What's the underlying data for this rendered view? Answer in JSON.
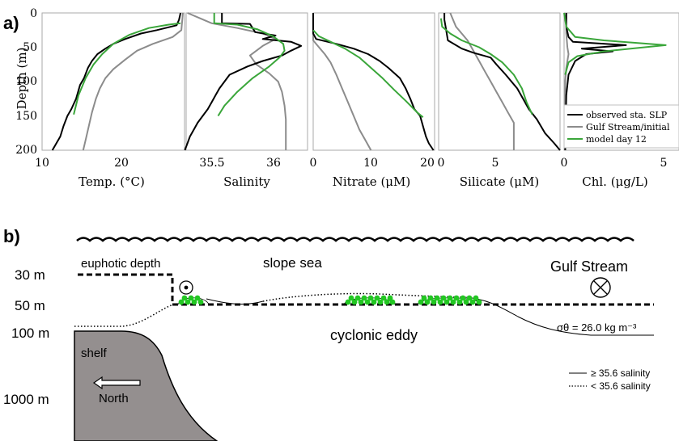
{
  "panel_a_label": "a)",
  "panel_b_label": "b)",
  "colors": {
    "observed": "#000000",
    "gulf_stream": "#8c8c8c",
    "model": "#3aa63a",
    "shelf": "#948f8f",
    "patch": "#22c722"
  },
  "chart_data": {
    "type": "line",
    "ylabel": "Depth (m)",
    "ylim": [
      200,
      0
    ],
    "yticks": [
      "0",
      "50",
      "100",
      "150",
      "200"
    ],
    "legend": [
      "observed sta. SLP",
      "Gulf Stream/initial",
      "model day 12"
    ],
    "legend_position": "bottom-right of last panel",
    "panels": [
      {
        "xlabel": "Temp. (°C)",
        "xlim": [
          10,
          28
        ],
        "xticks": [
          "10",
          "20"
        ],
        "series": [
          {
            "name": "observed sta. SLP",
            "points": [
              [
                27.5,
                0
              ],
              [
                27.3,
                10
              ],
              [
                27.0,
                18
              ],
              [
                24.5,
                25
              ],
              [
                22.5,
                30
              ],
              [
                20.5,
                38
              ],
              [
                19.0,
                45
              ],
              [
                18.0,
                52
              ],
              [
                17.0,
                60
              ],
              [
                16.3,
                70
              ],
              [
                15.8,
                80
              ],
              [
                15.3,
                95
              ],
              [
                14.8,
                105
              ],
              [
                14.3,
                125
              ],
              [
                13.7,
                140
              ],
              [
                13.2,
                150
              ],
              [
                12.7,
                165
              ],
              [
                12.3,
                180
              ],
              [
                11.8,
                190
              ],
              [
                11.3,
                200
              ]
            ]
          },
          {
            "name": "Gulf Stream/initial",
            "points": [
              [
                27.8,
                0
              ],
              [
                27.6,
                25
              ],
              [
                26.5,
                35
              ],
              [
                24.0,
                45
              ],
              [
                22.0,
                55
              ],
              [
                20.5,
                68
              ],
              [
                19.0,
                82
              ],
              [
                18.0,
                95
              ],
              [
                17.3,
                110
              ],
              [
                16.8,
                125
              ],
              [
                16.3,
                145
              ],
              [
                15.9,
                165
              ],
              [
                15.5,
                185
              ],
              [
                15.2,
                200
              ]
            ]
          },
          {
            "name": "model day 12",
            "points": [
              [
                27.5,
                15
              ],
              [
                26.0,
                17
              ],
              [
                23.5,
                22
              ],
              [
                21.0,
                32
              ],
              [
                19.0,
                45
              ],
              [
                17.6,
                60
              ],
              [
                16.5,
                75
              ],
              [
                15.5,
                95
              ],
              [
                14.6,
                120
              ],
              [
                14.0,
                148
              ]
            ]
          }
        ]
      },
      {
        "xlabel": "Salinity",
        "xlim": [
          35.4,
          36.35
        ],
        "xticks": [
          "35.5",
          "36"
        ],
        "series": [
          {
            "name": "observed sta. SLP",
            "points": [
              [
                35.68,
                0
              ],
              [
                35.68,
                15
              ],
              [
                35.9,
                16
              ],
              [
                35.92,
                22
              ],
              [
                35.94,
                28
              ],
              [
                36.1,
                33
              ],
              [
                36.0,
                38
              ],
              [
                36.22,
                42
              ],
              [
                36.3,
                48
              ],
              [
                36.22,
                55
              ],
              [
                36.15,
                62
              ],
              [
                36.0,
                70
              ],
              [
                35.88,
                78
              ],
              [
                35.74,
                90
              ],
              [
                35.7,
                100
              ],
              [
                35.66,
                110
              ],
              [
                35.63,
                120
              ],
              [
                35.6,
                130
              ],
              [
                35.57,
                140
              ],
              [
                35.53,
                150
              ],
              [
                35.49,
                160
              ],
              [
                35.46,
                170
              ],
              [
                35.43,
                180
              ],
              [
                35.41,
                190
              ],
              [
                35.39,
                200
              ]
            ]
          },
          {
            "name": "Gulf Stream/initial",
            "points": [
              [
                35.41,
                0
              ],
              [
                35.6,
                15
              ],
              [
                35.8,
                22
              ],
              [
                36.0,
                30
              ],
              [
                36.1,
                38
              ],
              [
                36.0,
                48
              ],
              [
                35.9,
                62
              ],
              [
                35.95,
                75
              ],
              [
                36.05,
                88
              ],
              [
                36.12,
                100
              ],
              [
                36.15,
                115
              ],
              [
                36.17,
                135
              ],
              [
                36.18,
                155
              ],
              [
                36.18,
                200
              ]
            ]
          },
          {
            "name": "model day 12",
            "points": [
              [
                35.62,
                0
              ],
              [
                35.62,
                15
              ],
              [
                35.8,
                17
              ],
              [
                35.96,
                24
              ],
              [
                36.08,
                34
              ],
              [
                36.16,
                45
              ],
              [
                36.17,
                55
              ],
              [
                36.13,
                65
              ],
              [
                36.05,
                78
              ],
              [
                35.92,
                95
              ],
              [
                35.8,
                115
              ],
              [
                35.7,
                135
              ],
              [
                35.65,
                150
              ]
            ]
          }
        ]
      },
      {
        "xlabel": "Nitrate (μM)",
        "xlim": [
          0,
          21
        ],
        "xticks": [
          "0",
          "10",
          "20"
        ],
        "series": [
          {
            "name": "observed sta. SLP",
            "points": [
              [
                0,
                0
              ],
              [
                0,
                30
              ],
              [
                0.5,
                38
              ],
              [
                4,
                45
              ],
              [
                7,
                52
              ],
              [
                9.5,
                60
              ],
              [
                11.5,
                70
              ],
              [
                13,
                80
              ],
              [
                15,
                95
              ],
              [
                16,
                110
              ],
              [
                16.8,
                125
              ],
              [
                17.5,
                140
              ],
              [
                18.5,
                150
              ],
              [
                19,
                165
              ],
              [
                19.5,
                180
              ],
              [
                20,
                190
              ],
              [
                20.8,
                200
              ]
            ]
          },
          {
            "name": "Gulf Stream/initial",
            "points": [
              [
                0,
                0
              ],
              [
                0,
                40
              ],
              [
                1,
                50
              ],
              [
                2,
                60
              ],
              [
                3,
                72
              ],
              [
                4,
                90
              ],
              [
                5,
                110
              ],
              [
                6,
                130
              ],
              [
                7,
                150
              ],
              [
                8,
                170
              ],
              [
                9,
                185
              ],
              [
                10,
                200
              ]
            ]
          },
          {
            "name": "model day 12",
            "points": [
              [
                0,
                25
              ],
              [
                1,
                34
              ],
              [
                3,
                42
              ],
              [
                5.5,
                52
              ],
              [
                8,
                65
              ],
              [
                10,
                80
              ],
              [
                12,
                95
              ],
              [
                14,
                112
              ],
              [
                16,
                128
              ],
              [
                18,
                145
              ],
              [
                19,
                152
              ]
            ]
          }
        ]
      },
      {
        "xlabel": "Silicate (μM)",
        "xlim": [
          0,
          10.5
        ],
        "xticks": [
          "0",
          "5"
        ],
        "series": [
          {
            "name": "observed sta. SLP",
            "points": [
              [
                0.5,
                0
              ],
              [
                0.5,
                10
              ],
              [
                0.6,
                20
              ],
              [
                0.8,
                40
              ],
              [
                2,
                52
              ],
              [
                3,
                58
              ],
              [
                4.5,
                65
              ],
              [
                5,
                75
              ],
              [
                5.8,
                90
              ],
              [
                6.8,
                110
              ],
              [
                7.3,
                125
              ],
              [
                7.8,
                140
              ],
              [
                8.5,
                155
              ],
              [
                9.2,
                175
              ],
              [
                10,
                190
              ],
              [
                10.5,
                200
              ]
            ]
          },
          {
            "name": "Gulf Stream/initial",
            "points": [
              [
                1,
                0
              ],
              [
                1.5,
                20
              ],
              [
                2.5,
                40
              ],
              [
                3,
                55
              ],
              [
                3.5,
                70
              ],
              [
                4,
                85
              ],
              [
                4.5,
                100
              ],
              [
                5,
                115
              ],
              [
                5.5,
                130
              ],
              [
                6,
                145
              ],
              [
                6.5,
                160
              ],
              [
                6.5,
                200
              ]
            ]
          },
          {
            "name": "model day 12",
            "points": [
              [
                0.2,
                8
              ],
              [
                0.3,
                20
              ],
              [
                1,
                30
              ],
              [
                2,
                40
              ],
              [
                3.5,
                50
              ],
              [
                4.5,
                60
              ],
              [
                5.5,
                72
              ],
              [
                6.5,
                90
              ],
              [
                7.2,
                110
              ],
              [
                7.6,
                130
              ],
              [
                8.1,
                148
              ]
            ]
          }
        ]
      },
      {
        "xlabel": "Chl. (μg/L)",
        "xlim": [
          0,
          5.2
        ],
        "xticks": [
          "0",
          "5"
        ],
        "series": [
          {
            "name": "observed sta. SLP",
            "points": [
              [
                0.1,
                0
              ],
              [
                0.1,
                20
              ],
              [
                0.2,
                35
              ],
              [
                0.4,
                42
              ],
              [
                2.8,
                47
              ],
              [
                0.8,
                52
              ],
              [
                2.2,
                56
              ],
              [
                1.0,
                60
              ],
              [
                0.5,
                70
              ],
              [
                0.2,
                90
              ],
              [
                0.1,
                120
              ],
              [
                0.05,
                200
              ]
            ]
          },
          {
            "name": "Gulf Stream/initial",
            "points": [
              [
                0.1,
                0
              ],
              [
                0.1,
                30
              ],
              [
                0.15,
                50
              ],
              [
                0.2,
                60
              ],
              [
                0.1,
                80
              ],
              [
                0.05,
                100
              ],
              [
                0.05,
                200
              ]
            ]
          },
          {
            "name": "model day 12",
            "points": [
              [
                0,
                0
              ],
              [
                0.1,
                20
              ],
              [
                0.5,
                35
              ],
              [
                1.8,
                40
              ],
              [
                4.6,
                47
              ],
              [
                1.8,
                56
              ],
              [
                0.6,
                63
              ],
              [
                0.2,
                72
              ],
              [
                0.05,
                90
              ]
            ]
          }
        ]
      }
    ]
  },
  "diagram": {
    "depth_labels": [
      "30 m",
      "50 m",
      "100 m",
      "1000 m"
    ],
    "euphotic_depth": "euphotic depth",
    "slope_sea": "slope sea",
    "gulf_stream": "Gulf Stream",
    "cyclonic_eddy": "cyclonic eddy",
    "sigma_label": "σθ = 26.0 kg m⁻³",
    "shelf": "shelf",
    "north": "North",
    "salinity_high": "≥ 35.6 salinity",
    "salinity_low": "< 35.6 salinity"
  }
}
